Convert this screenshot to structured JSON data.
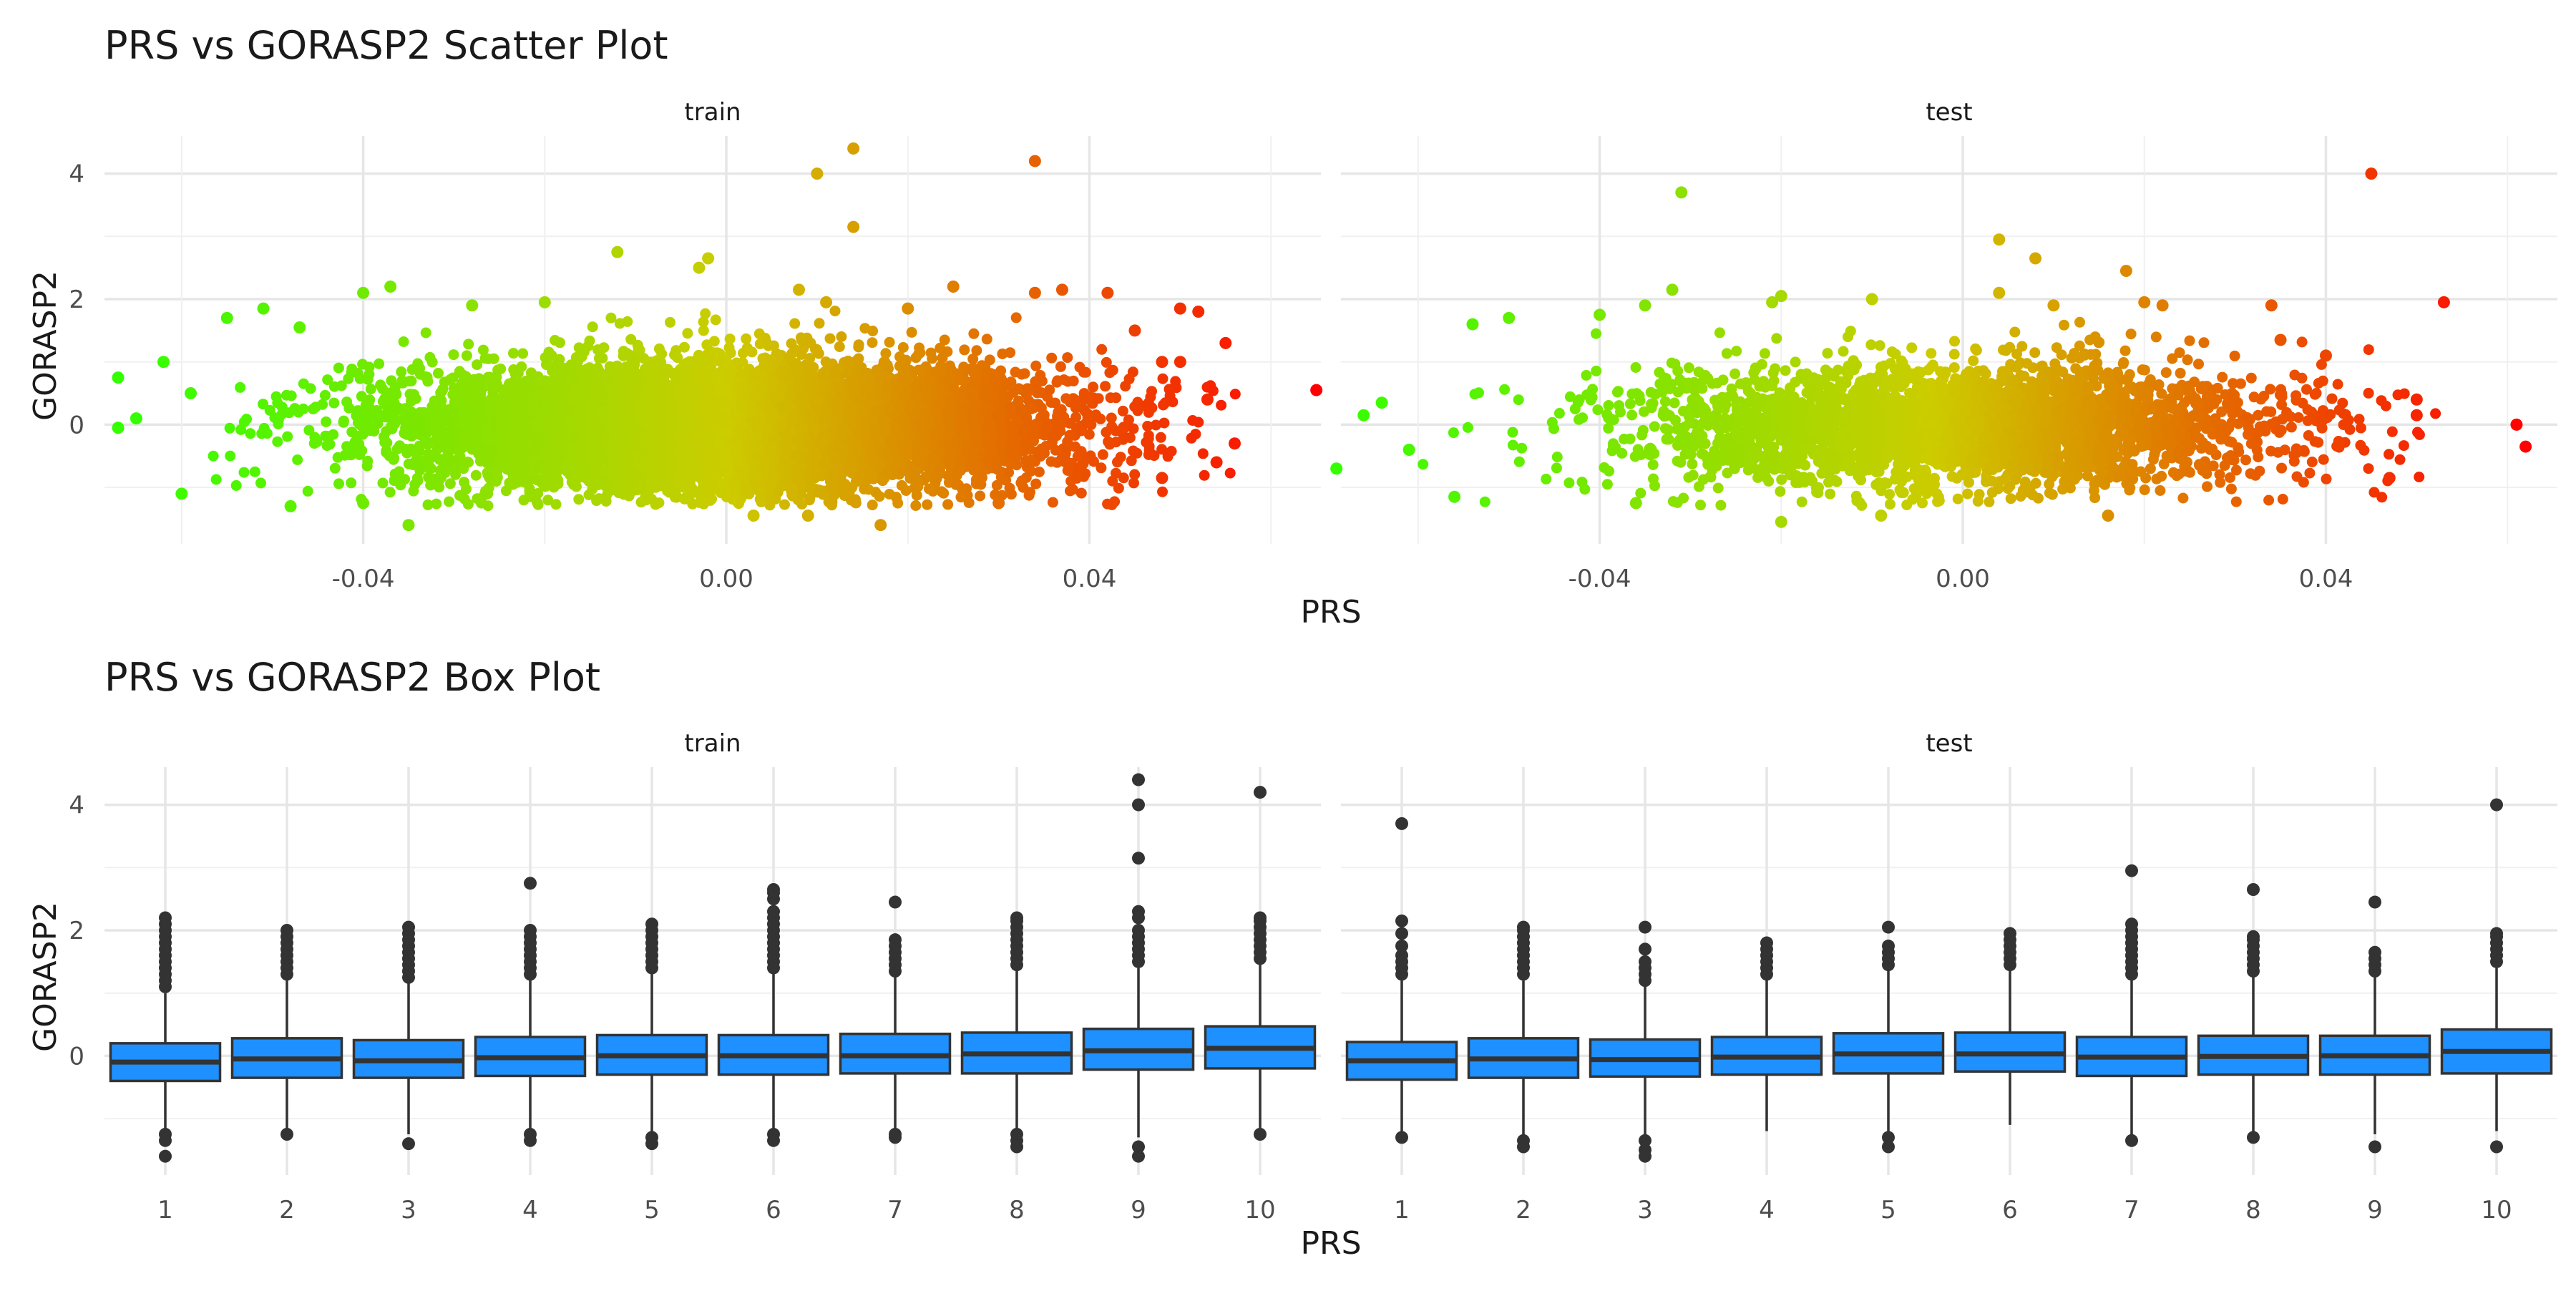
{
  "chart_data": [
    {
      "type": "scatter",
      "title": "PRS vs GORASP2 Scatter Plot",
      "xlabel": "PRS",
      "ylabel": "GORASP2",
      "x_ticks": [
        "-0.04",
        "0.00",
        "0.04"
      ],
      "y_ticks": [
        "0",
        "2",
        "4"
      ],
      "xlim": [
        -0.0685,
        0.0655
      ],
      "ylim": [
        -1.9,
        4.6
      ],
      "grid": true,
      "legend": "none",
      "color_scale": {
        "low": "#33ff00",
        "mid": "#cccc00",
        "high": "#ff0000",
        "by": "x"
      },
      "facets": [
        {
          "name": "train",
          "x_range": [
            -0.065,
            0.065
          ],
          "approx_n": 8000,
          "points": [
            {
              "x": -0.067,
              "y": 0.75
            },
            {
              "x": -0.067,
              "y": -0.05
            },
            {
              "x": -0.065,
              "y": 0.1
            },
            {
              "x": -0.062,
              "y": 1.0
            },
            {
              "x": -0.06,
              "y": -1.1
            },
            {
              "x": -0.059,
              "y": 0.5
            },
            {
              "x": -0.055,
              "y": 1.7
            },
            {
              "x": -0.051,
              "y": 1.85
            },
            {
              "x": -0.047,
              "y": 1.55
            },
            {
              "x": -0.04,
              "y": 2.1
            },
            {
              "x": -0.037,
              "y": 2.2
            },
            {
              "x": -0.048,
              "y": -1.3
            },
            {
              "x": -0.04,
              "y": -1.25
            },
            {
              "x": -0.035,
              "y": -1.6
            },
            {
              "x": -0.028,
              "y": 1.9
            },
            {
              "x": -0.02,
              "y": 1.95
            },
            {
              "x": -0.012,
              "y": 2.75
            },
            {
              "x": -0.003,
              "y": 2.5
            },
            {
              "x": -0.002,
              "y": 2.65
            },
            {
              "x": 0.008,
              "y": 2.15
            },
            {
              "x": 0.01,
              "y": 4.0
            },
            {
              "x": 0.011,
              "y": 1.95
            },
            {
              "x": 0.014,
              "y": 4.4
            },
            {
              "x": 0.014,
              "y": 3.15
            },
            {
              "x": 0.017,
              "y": -1.6
            },
            {
              "x": 0.02,
              "y": 1.85
            },
            {
              "x": 0.025,
              "y": 2.2
            },
            {
              "x": 0.034,
              "y": 4.2
            },
            {
              "x": 0.034,
              "y": 2.1
            },
            {
              "x": 0.037,
              "y": 2.15
            },
            {
              "x": 0.042,
              "y": 2.1
            },
            {
              "x": 0.045,
              "y": 1.5
            },
            {
              "x": 0.048,
              "y": 1.0
            },
            {
              "x": 0.048,
              "y": -0.85
            },
            {
              "x": 0.05,
              "y": 1.0
            },
            {
              "x": 0.052,
              "y": 1.8
            },
            {
              "x": 0.05,
              "y": 1.85
            },
            {
              "x": 0.053,
              "y": 0.4
            },
            {
              "x": 0.055,
              "y": 1.3
            },
            {
              "x": 0.054,
              "y": -0.6
            },
            {
              "x": 0.056,
              "y": -0.3
            },
            {
              "x": 0.065,
              "y": 0.55
            },
            {
              "x": 0.003,
              "y": -1.45
            },
            {
              "x": 0.009,
              "y": -1.45
            },
            {
              "x": 0.03,
              "y": -1.25
            }
          ]
        },
        {
          "name": "test",
          "x_range": [
            -0.069,
            0.062
          ],
          "approx_n": 3000,
          "points": [
            {
              "x": -0.069,
              "y": -0.7
            },
            {
              "x": -0.066,
              "y": 0.15
            },
            {
              "x": -0.064,
              "y": 0.35
            },
            {
              "x": -0.061,
              "y": -0.4
            },
            {
              "x": -0.056,
              "y": -1.15
            },
            {
              "x": -0.054,
              "y": 1.6
            },
            {
              "x": -0.05,
              "y": 1.7
            },
            {
              "x": -0.04,
              "y": 1.75
            },
            {
              "x": -0.036,
              "y": -1.25
            },
            {
              "x": -0.035,
              "y": 1.9
            },
            {
              "x": -0.031,
              "y": 3.7
            },
            {
              "x": -0.032,
              "y": 2.15
            },
            {
              "x": -0.02,
              "y": 2.05
            },
            {
              "x": -0.021,
              "y": 1.95
            },
            {
              "x": -0.02,
              "y": -1.55
            },
            {
              "x": -0.01,
              "y": 2.0
            },
            {
              "x": -0.009,
              "y": -1.45
            },
            {
              "x": 0.004,
              "y": 2.95
            },
            {
              "x": 0.004,
              "y": 2.1
            },
            {
              "x": 0.008,
              "y": 2.65
            },
            {
              "x": 0.01,
              "y": 1.9
            },
            {
              "x": 0.016,
              "y": -1.45
            },
            {
              "x": 0.018,
              "y": 2.45
            },
            {
              "x": 0.02,
              "y": 1.95
            },
            {
              "x": 0.022,
              "y": 1.9
            },
            {
              "x": 0.034,
              "y": 1.9
            },
            {
              "x": 0.035,
              "y": 1.35
            },
            {
              "x": 0.04,
              "y": 1.1
            },
            {
              "x": 0.045,
              "y": 4.0
            },
            {
              "x": 0.047,
              "y": -0.85
            },
            {
              "x": 0.05,
              "y": 0.4
            },
            {
              "x": 0.05,
              "y": 0.15
            },
            {
              "x": 0.053,
              "y": 1.95
            },
            {
              "x": 0.061,
              "y": 0.0
            },
            {
              "x": 0.062,
              "y": -0.35
            }
          ]
        }
      ]
    },
    {
      "type": "box",
      "title": "PRS vs GORASP2 Box Plot",
      "xlabel": "PRS",
      "ylabel": "GORASP2",
      "categories": [
        "1",
        "2",
        "3",
        "4",
        "5",
        "6",
        "7",
        "8",
        "9",
        "10"
      ],
      "y_ticks": [
        "0",
        "2",
        "4"
      ],
      "ylim": [
        -1.9,
        4.6
      ],
      "grid": true,
      "fill": "#1e90ff",
      "facets": [
        {
          "name": "train",
          "boxes": [
            {
              "q1": -0.4,
              "median": -0.1,
              "q3": 0.2,
              "whisker_low": -1.2,
              "whisker_high": 1.0,
              "outliers": [
                1.1,
                1.2,
                1.3,
                1.4,
                1.5,
                1.6,
                1.7,
                1.8,
                1.9,
                2.0,
                2.1,
                2.2,
                -1.25,
                -1.35,
                -1.6
              ]
            },
            {
              "q1": -0.35,
              "median": -0.05,
              "q3": 0.28,
              "whisker_low": -1.2,
              "whisker_high": 1.2,
              "outliers": [
                1.3,
                1.4,
                1.5,
                1.6,
                1.7,
                1.8,
                1.9,
                2.0,
                -1.25
              ]
            },
            {
              "q1": -0.35,
              "median": -0.08,
              "q3": 0.25,
              "whisker_low": -1.25,
              "whisker_high": 1.2,
              "outliers": [
                1.25,
                1.35,
                1.45,
                1.55,
                1.65,
                1.75,
                1.85,
                1.95,
                2.05,
                -1.4
              ]
            },
            {
              "q1": -0.32,
              "median": -0.03,
              "q3": 0.3,
              "whisker_low": -1.2,
              "whisker_high": 1.25,
              "outliers": [
                1.3,
                1.4,
                1.5,
                1.6,
                1.7,
                1.8,
                1.9,
                2.0,
                2.75,
                -1.25,
                -1.35
              ]
            },
            {
              "q1": -0.3,
              "median": 0.0,
              "q3": 0.33,
              "whisker_low": -1.2,
              "whisker_high": 1.3,
              "outliers": [
                1.4,
                1.5,
                1.6,
                1.7,
                1.8,
                1.9,
                2.0,
                2.1,
                -1.3,
                -1.4
              ]
            },
            {
              "q1": -0.3,
              "median": 0.0,
              "q3": 0.33,
              "whisker_low": -1.2,
              "whisker_high": 1.3,
              "outliers": [
                1.4,
                1.5,
                1.6,
                1.7,
                1.8,
                1.9,
                2.0,
                2.1,
                2.2,
                2.3,
                2.5,
                2.6,
                2.65,
                -1.25,
                -1.35
              ]
            },
            {
              "q1": -0.28,
              "median": 0.0,
              "q3": 0.35,
              "whisker_low": -1.2,
              "whisker_high": 1.3,
              "outliers": [
                1.35,
                1.45,
                1.55,
                1.65,
                1.75,
                1.85,
                2.45,
                -1.25,
                -1.3
              ]
            },
            {
              "q1": -0.28,
              "median": 0.03,
              "q3": 0.37,
              "whisker_low": -1.2,
              "whisker_high": 1.35,
              "outliers": [
                1.45,
                1.55,
                1.65,
                1.75,
                1.85,
                1.95,
                2.05,
                2.15,
                2.2,
                -1.25,
                -1.35,
                -1.45
              ]
            },
            {
              "q1": -0.22,
              "median": 0.08,
              "q3": 0.43,
              "whisker_low": -1.3,
              "whisker_high": 1.4,
              "outliers": [
                1.5,
                1.6,
                1.7,
                1.8,
                1.9,
                2.0,
                2.2,
                2.3,
                3.15,
                4.0,
                4.4,
                -1.45,
                -1.6
              ]
            },
            {
              "q1": -0.2,
              "median": 0.12,
              "q3": 0.47,
              "whisker_low": -1.15,
              "whisker_high": 1.45,
              "outliers": [
                1.55,
                1.65,
                1.75,
                1.85,
                1.95,
                2.05,
                2.15,
                2.2,
                4.2,
                -1.25
              ]
            }
          ]
        },
        {
          "name": "test",
          "boxes": [
            {
              "q1": -0.38,
              "median": -0.08,
              "q3": 0.22,
              "whisker_low": -1.25,
              "whisker_high": 1.2,
              "outliers": [
                1.3,
                1.4,
                1.5,
                1.6,
                1.75,
                1.95,
                2.15,
                3.7,
                -1.3
              ]
            },
            {
              "q1": -0.35,
              "median": -0.05,
              "q3": 0.28,
              "whisker_low": -1.25,
              "whisker_high": 1.2,
              "outliers": [
                1.3,
                1.4,
                1.5,
                1.6,
                1.7,
                1.8,
                1.9,
                2.0,
                2.05,
                -1.35,
                -1.45
              ]
            },
            {
              "q1": -0.33,
              "median": -0.06,
              "q3": 0.26,
              "whisker_low": -1.25,
              "whisker_high": 1.15,
              "outliers": [
                1.2,
                1.3,
                1.4,
                1.5,
                1.7,
                2.05,
                -1.35,
                -1.5,
                -1.6
              ]
            },
            {
              "q1": -0.3,
              "median": -0.02,
              "q3": 0.3,
              "whisker_low": -1.2,
              "whisker_high": 1.25,
              "outliers": [
                1.3,
                1.4,
                1.5,
                1.6,
                1.7,
                1.8
              ]
            },
            {
              "q1": -0.28,
              "median": 0.03,
              "q3": 0.36,
              "whisker_low": -1.2,
              "whisker_high": 1.35,
              "outliers": [
                1.45,
                1.55,
                1.65,
                1.75,
                2.05,
                -1.3,
                -1.45
              ]
            },
            {
              "q1": -0.25,
              "median": 0.03,
              "q3": 0.37,
              "whisker_low": -1.1,
              "whisker_high": 1.35,
              "outliers": [
                1.45,
                1.55,
                1.65,
                1.75,
                1.85,
                1.95
              ]
            },
            {
              "q1": -0.32,
              "median": -0.02,
              "q3": 0.3,
              "whisker_low": -1.25,
              "whisker_high": 1.2,
              "outliers": [
                1.3,
                1.4,
                1.5,
                1.6,
                1.7,
                1.8,
                1.9,
                2.0,
                2.1,
                2.95,
                -1.35
              ]
            },
            {
              "q1": -0.3,
              "median": -0.01,
              "q3": 0.32,
              "whisker_low": -1.2,
              "whisker_high": 1.25,
              "outliers": [
                1.35,
                1.45,
                1.55,
                1.65,
                1.75,
                1.85,
                1.9,
                2.65,
                -1.3
              ]
            },
            {
              "q1": -0.3,
              "median": 0.0,
              "q3": 0.32,
              "whisker_low": -1.25,
              "whisker_high": 1.25,
              "outliers": [
                1.35,
                1.45,
                1.55,
                1.65,
                2.45,
                -1.45
              ]
            },
            {
              "q1": -0.28,
              "median": 0.07,
              "q3": 0.42,
              "whisker_low": -1.2,
              "whisker_high": 1.4,
              "outliers": [
                1.5,
                1.6,
                1.7,
                1.8,
                1.9,
                1.95,
                4.0,
                -1.45
              ]
            }
          ]
        }
      ]
    }
  ]
}
